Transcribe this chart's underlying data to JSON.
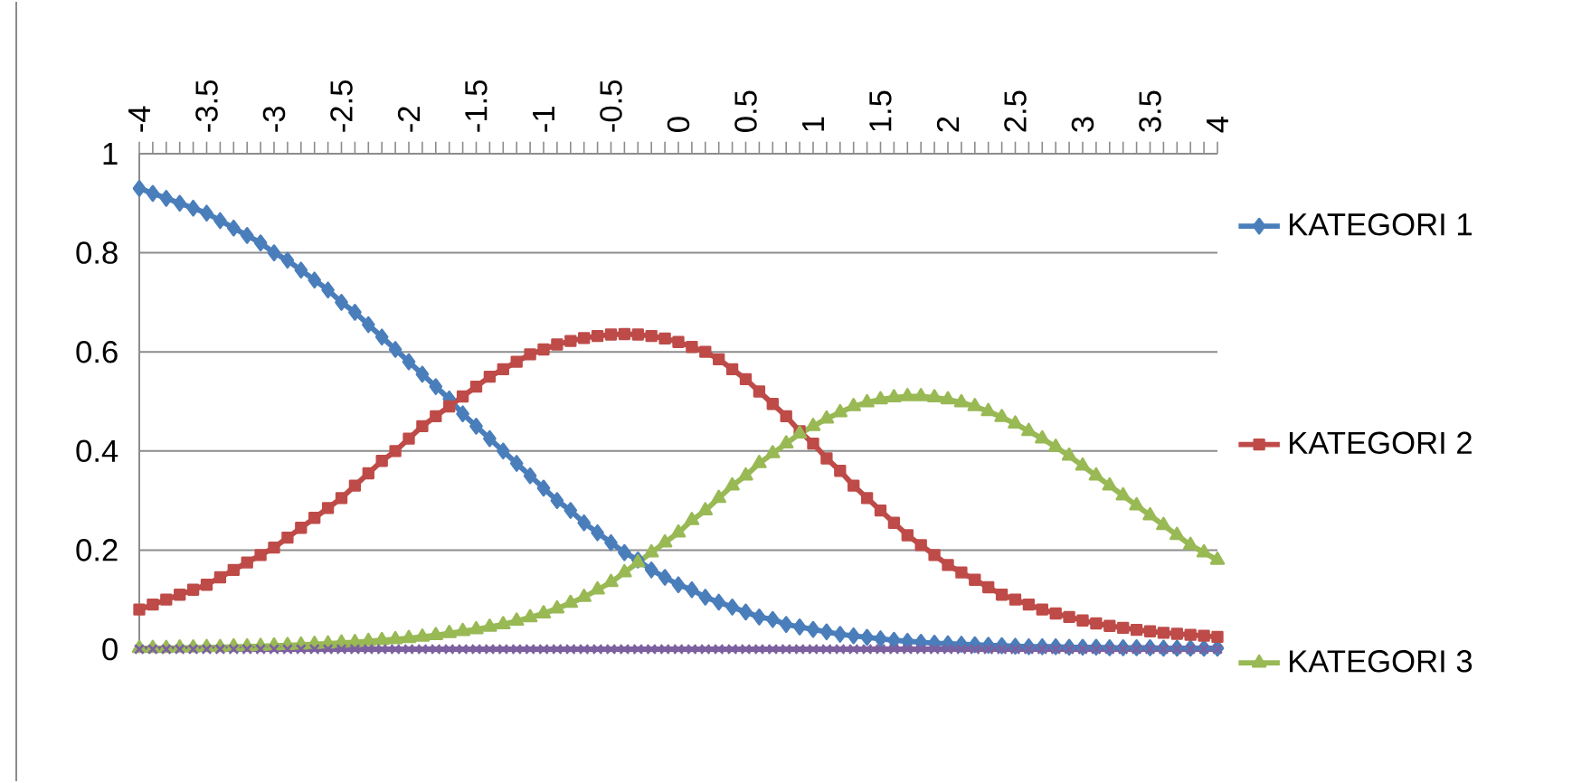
{
  "chart_data": {
    "type": "line",
    "x": [
      -4.0,
      -3.9,
      -3.8,
      -3.7,
      -3.6,
      -3.5,
      -3.4,
      -3.3,
      -3.2,
      -3.1,
      -3.0,
      -2.9,
      -2.8,
      -2.7,
      -2.6,
      -2.5,
      -2.4,
      -2.3,
      -2.2,
      -2.1,
      -2.0,
      -1.9,
      -1.8,
      -1.7,
      -1.6,
      -1.5,
      -1.4,
      -1.3,
      -1.2,
      -1.1,
      -1.0,
      -0.9,
      -0.8,
      -0.7,
      -0.6,
      -0.5,
      -0.4,
      -0.3,
      -0.2,
      -0.1,
      0.0,
      0.1,
      0.2,
      0.3,
      0.4,
      0.5,
      0.6,
      0.7,
      0.8,
      0.9,
      1.0,
      1.1,
      1.2,
      1.3,
      1.4,
      1.5,
      1.6,
      1.7,
      1.8,
      1.9,
      2.0,
      2.1,
      2.2,
      2.3,
      2.4,
      2.5,
      2.6,
      2.7,
      2.8,
      2.9,
      3.0,
      3.1,
      3.2,
      3.3,
      3.4,
      3.5,
      3.6,
      3.7,
      3.8,
      3.9,
      4.0
    ],
    "series": [
      {
        "name": "KATEGORI 1",
        "color": "#4a7ebb",
        "marker": "diamond",
        "values": [
          0.93,
          0.92,
          0.91,
          0.9,
          0.89,
          0.88,
          0.865,
          0.85,
          0.835,
          0.82,
          0.8,
          0.785,
          0.765,
          0.745,
          0.725,
          0.7,
          0.68,
          0.655,
          0.63,
          0.605,
          0.58,
          0.555,
          0.53,
          0.505,
          0.475,
          0.45,
          0.425,
          0.4,
          0.375,
          0.35,
          0.325,
          0.3,
          0.28,
          0.255,
          0.235,
          0.215,
          0.195,
          0.18,
          0.16,
          0.145,
          0.13,
          0.12,
          0.105,
          0.095,
          0.085,
          0.075,
          0.065,
          0.06,
          0.05,
          0.045,
          0.04,
          0.035,
          0.03,
          0.027,
          0.024,
          0.021,
          0.018,
          0.016,
          0.014,
          0.012,
          0.011,
          0.01,
          0.009,
          0.008,
          0.007,
          0.006,
          0.005,
          0.005,
          0.005,
          0.004,
          0.004,
          0.004,
          0.003,
          0.003,
          0.003,
          0.003,
          0.002,
          0.002,
          0.002,
          0.002,
          0.002
        ]
      },
      {
        "name": "KATEGORI 2",
        "color": "#be4b48",
        "marker": "square",
        "values": [
          0.08,
          0.09,
          0.1,
          0.11,
          0.12,
          0.13,
          0.145,
          0.16,
          0.175,
          0.19,
          0.205,
          0.225,
          0.245,
          0.265,
          0.285,
          0.305,
          0.33,
          0.355,
          0.38,
          0.4,
          0.425,
          0.45,
          0.47,
          0.49,
          0.51,
          0.53,
          0.55,
          0.565,
          0.58,
          0.595,
          0.605,
          0.615,
          0.622,
          0.628,
          0.632,
          0.635,
          0.636,
          0.635,
          0.632,
          0.627,
          0.62,
          0.61,
          0.6,
          0.585,
          0.565,
          0.545,
          0.52,
          0.495,
          0.47,
          0.44,
          0.415,
          0.385,
          0.36,
          0.33,
          0.305,
          0.28,
          0.255,
          0.23,
          0.21,
          0.19,
          0.17,
          0.155,
          0.14,
          0.125,
          0.11,
          0.1,
          0.09,
          0.08,
          0.072,
          0.065,
          0.058,
          0.052,
          0.047,
          0.043,
          0.039,
          0.036,
          0.033,
          0.031,
          0.029,
          0.027,
          0.025
        ]
      },
      {
        "name": "KATEGORI 3",
        "color": "#98b954",
        "marker": "triangle",
        "values": [
          0.002,
          0.002,
          0.002,
          0.003,
          0.003,
          0.004,
          0.004,
          0.005,
          0.005,
          0.006,
          0.007,
          0.008,
          0.009,
          0.01,
          0.011,
          0.013,
          0.014,
          0.016,
          0.018,
          0.02,
          0.022,
          0.025,
          0.028,
          0.032,
          0.036,
          0.04,
          0.045,
          0.05,
          0.057,
          0.064,
          0.072,
          0.082,
          0.093,
          0.105,
          0.12,
          0.135,
          0.155,
          0.175,
          0.195,
          0.215,
          0.235,
          0.26,
          0.28,
          0.305,
          0.33,
          0.35,
          0.375,
          0.395,
          0.415,
          0.435,
          0.45,
          0.465,
          0.478,
          0.49,
          0.498,
          0.504,
          0.508,
          0.51,
          0.51,
          0.508,
          0.504,
          0.498,
          0.49,
          0.48,
          0.468,
          0.455,
          0.44,
          0.425,
          0.408,
          0.39,
          0.37,
          0.35,
          0.33,
          0.31,
          0.29,
          0.27,
          0.25,
          0.23,
          0.21,
          0.195,
          0.18
        ]
      },
      {
        "color": "#7d60a0",
        "marker": "cross",
        "values": [
          0,
          0,
          0,
          0,
          0,
          0,
          0,
          0,
          0,
          0,
          0,
          0,
          0,
          0,
          0,
          0,
          0,
          0,
          0,
          0,
          0,
          0,
          0,
          0,
          0,
          0,
          0,
          0,
          0,
          0,
          0,
          0,
          0,
          0,
          0,
          0,
          0,
          0,
          0,
          0,
          0,
          0,
          0,
          0,
          0,
          0,
          0,
          0,
          0,
          0,
          0,
          0,
          0,
          0,
          0,
          0,
          0,
          0,
          0,
          0,
          0,
          0,
          0,
          0,
          0,
          0,
          0,
          0,
          0,
          0,
          0,
          0,
          0,
          0,
          0,
          0,
          0,
          0,
          0,
          0,
          0
        ]
      }
    ],
    "xlim": [
      -4,
      4
    ],
    "xticks": [
      -4,
      -3.5,
      -3,
      -2.5,
      -2,
      -1.5,
      -1,
      -0.5,
      0,
      0.5,
      1,
      1.5,
      2,
      2.5,
      3,
      3.5,
      4
    ],
    "ylim": [
      0,
      1
    ],
    "yticks": [
      0,
      0.2,
      0.4,
      0.6,
      0.8,
      1
    ],
    "grid": "y",
    "legend": "right"
  }
}
